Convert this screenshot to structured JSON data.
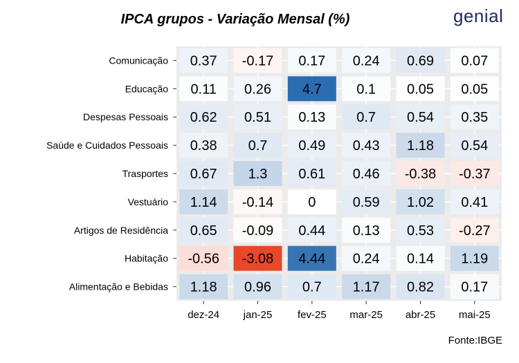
{
  "title": "IPCA grupos - Variação Mensal (%)",
  "brand": "genial",
  "source": "Fonte:IBGE",
  "colors": {
    "negative": "#e8472a",
    "positive": "#2b6cb0",
    "neutral": "#ffffff",
    "panel": "#ebebeb",
    "grid": "#ffffff",
    "text": "#000000",
    "brand": "#1f2a5c"
  },
  "chart_data": {
    "type": "heatmap",
    "title": "IPCA grupos - Variação Mensal (%)",
    "xlabel": "",
    "ylabel": "",
    "x": [
      "dez-24",
      "jan-25",
      "fev-25",
      "mar-25",
      "abr-25",
      "mai-25"
    ],
    "y": [
      "Comunicação",
      "Educação",
      "Despesas Pessoais",
      "Saúde e Cuidados Pessoais",
      "Trasportes",
      "Vestuário",
      "Artigos de Residência",
      "Habitação",
      "Alimentação e Bebidas"
    ],
    "values": [
      [
        0.37,
        -0.17,
        0.17,
        0.24,
        0.69,
        0.07
      ],
      [
        0.11,
        0.26,
        4.7,
        0.1,
        0.05,
        0.05
      ],
      [
        0.62,
        0.51,
        0.13,
        0.7,
        0.54,
        0.35
      ],
      [
        0.38,
        0.7,
        0.49,
        0.43,
        1.18,
        0.54
      ],
      [
        0.67,
        1.3,
        0.61,
        0.46,
        -0.38,
        -0.37
      ],
      [
        1.14,
        -0.14,
        0,
        0.59,
        1.02,
        0.41
      ],
      [
        0.65,
        -0.09,
        0.44,
        0.13,
        0.53,
        -0.27
      ],
      [
        -0.56,
        -3.08,
        4.44,
        0.24,
        0.14,
        1.19
      ],
      [
        1.18,
        0.96,
        0.7,
        1.17,
        0.82,
        0.17
      ]
    ],
    "color_scale": {
      "min": -3.08,
      "mid": 0,
      "max": 4.7
    },
    "legend": "none",
    "grid": true
  }
}
